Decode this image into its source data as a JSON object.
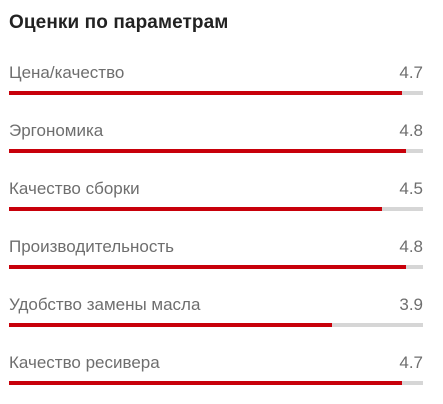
{
  "title": "Оценки по параметрам",
  "accent_color": "#c8000a",
  "track_color": "#d6d6d6",
  "max_score": 5,
  "ratings": [
    {
      "label": "Цена/качество",
      "value": "4.7",
      "fill_fraction": 0.95
    },
    {
      "label": "Эргономика",
      "value": "4.8",
      "fill_fraction": 0.96
    },
    {
      "label": "Качество сборки",
      "value": "4.5",
      "fill_fraction": 0.9
    },
    {
      "label": "Производительность",
      "value": "4.8",
      "fill_fraction": 0.96
    },
    {
      "label": "Удобство замены масла",
      "value": "3.9",
      "fill_fraction": 0.78
    },
    {
      "label": "Качество ресивера",
      "value": "4.7",
      "fill_fraction": 0.95
    }
  ]
}
